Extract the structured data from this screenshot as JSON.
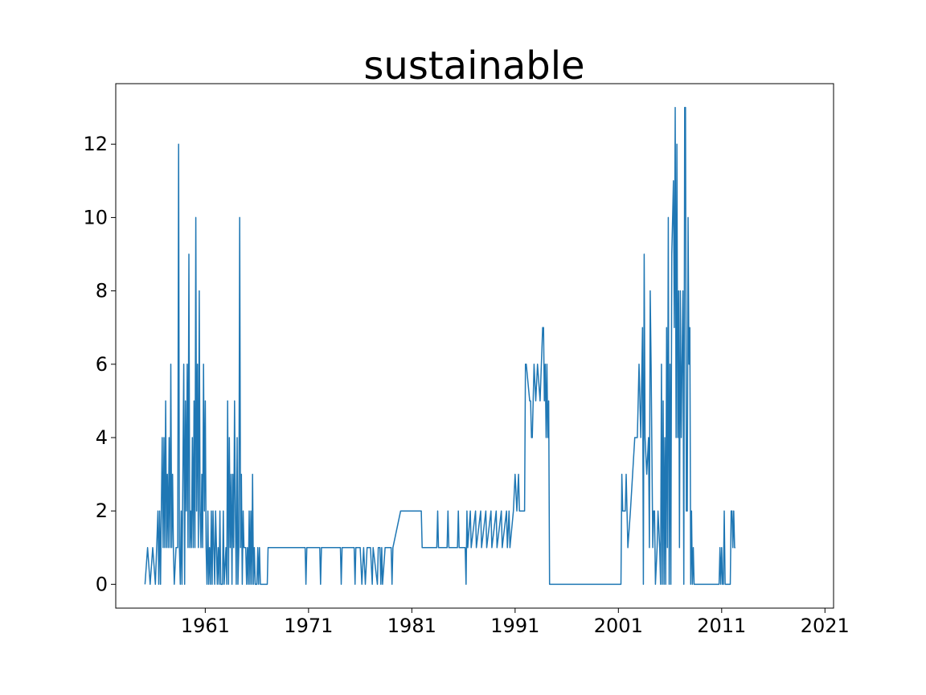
{
  "chart_data": {
    "type": "line",
    "title": "sustainable",
    "xlabel": "",
    "ylabel": "",
    "x_axis_type": "date",
    "xlim": [
      "1952-05-01",
      "2021-11-01"
    ],
    "ylim": [
      -0.65,
      13.65
    ],
    "xticks": [
      "1961",
      "1971",
      "1981",
      "1991",
      "2001",
      "2011",
      "2021"
    ],
    "yticks": [
      "0",
      "2",
      "4",
      "6",
      "8",
      "10",
      "12"
    ],
    "grid": false,
    "legend": "none",
    "series": [
      {
        "color": "#1f77b4",
        "points": [
          [
            "1955-03",
            0
          ],
          [
            "1955-06",
            1
          ],
          [
            "1955-09",
            0
          ],
          [
            "1955-12",
            1
          ],
          [
            "1956-03",
            0
          ],
          [
            "1956-06",
            2
          ],
          [
            "1956-07",
            0
          ],
          [
            "1956-08",
            2
          ],
          [
            "1956-09",
            0
          ],
          [
            "1956-10",
            2
          ],
          [
            "1956-11",
            4
          ],
          [
            "1956-12",
            1
          ],
          [
            "1957-01",
            4
          ],
          [
            "1957-02",
            1
          ],
          [
            "1957-03",
            5
          ],
          [
            "1957-04",
            1
          ],
          [
            "1957-05",
            3
          ],
          [
            "1957-06",
            1
          ],
          [
            "1957-07",
            4
          ],
          [
            "1957-08",
            1
          ],
          [
            "1957-09",
            6
          ],
          [
            "1957-10",
            1
          ],
          [
            "1957-11",
            3
          ],
          [
            "1957-12",
            1
          ],
          [
            "1958-01",
            0
          ],
          [
            "1958-03",
            1
          ],
          [
            "1958-05",
            1
          ],
          [
            "1958-06",
            12
          ],
          [
            "1958-07",
            1
          ],
          [
            "1958-08",
            0
          ],
          [
            "1958-09",
            2
          ],
          [
            "1958-10",
            0
          ],
          [
            "1958-12",
            6
          ],
          [
            "1959-01",
            0
          ],
          [
            "1959-02",
            5
          ],
          [
            "1959-03",
            2
          ],
          [
            "1959-04",
            6
          ],
          [
            "1959-05",
            1
          ],
          [
            "1959-06",
            9
          ],
          [
            "1959-07",
            1
          ],
          [
            "1959-08",
            2
          ],
          [
            "1959-09",
            1
          ],
          [
            "1959-10",
            4
          ],
          [
            "1959-11",
            1
          ],
          [
            "1959-12",
            5
          ],
          [
            "1960-01",
            1
          ],
          [
            "1960-02",
            10
          ],
          [
            "1960-03",
            2
          ],
          [
            "1960-04",
            6
          ],
          [
            "1960-05",
            1
          ],
          [
            "1960-06",
            8
          ],
          [
            "1960-07",
            2
          ],
          [
            "1960-08",
            1
          ],
          [
            "1960-09",
            3
          ],
          [
            "1960-10",
            1
          ],
          [
            "1960-11",
            6
          ],
          [
            "1960-12",
            2
          ],
          [
            "1961-01",
            5
          ],
          [
            "1961-02",
            1
          ],
          [
            "1961-03",
            0
          ],
          [
            "1961-04",
            2
          ],
          [
            "1961-05",
            0
          ],
          [
            "1961-06",
            1
          ],
          [
            "1961-07",
            0
          ],
          [
            "1961-08",
            2
          ],
          [
            "1961-09",
            0
          ],
          [
            "1961-10",
            2
          ],
          [
            "1961-11",
            1
          ],
          [
            "1961-12",
            0
          ],
          [
            "1962-01",
            2
          ],
          [
            "1962-02",
            1
          ],
          [
            "1962-03",
            0
          ],
          [
            "1962-04",
            1
          ],
          [
            "1962-05",
            0
          ],
          [
            "1962-06",
            2
          ],
          [
            "1962-07",
            0
          ],
          [
            "1962-09",
            0
          ],
          [
            "1962-10",
            2
          ],
          [
            "1962-11",
            0
          ],
          [
            "1963-01",
            1
          ],
          [
            "1963-02",
            0
          ],
          [
            "1963-03",
            5
          ],
          [
            "1963-04",
            0
          ],
          [
            "1963-05",
            4
          ],
          [
            "1963-06",
            1
          ],
          [
            "1963-07",
            3
          ],
          [
            "1963-08",
            0
          ],
          [
            "1963-09",
            3
          ],
          [
            "1963-10",
            1
          ],
          [
            "1963-11",
            5
          ],
          [
            "1963-12",
            2
          ],
          [
            "1964-01",
            0
          ],
          [
            "1964-02",
            4
          ],
          [
            "1964-03",
            0
          ],
          [
            "1964-04",
            1
          ],
          [
            "1964-05",
            10
          ],
          [
            "1964-06",
            1
          ],
          [
            "1964-07",
            3
          ],
          [
            "1964-08",
            0
          ],
          [
            "1964-09",
            2
          ],
          [
            "1964-10",
            1
          ],
          [
            "1964-12",
            1
          ],
          [
            "1965-01",
            0
          ],
          [
            "1965-02",
            1
          ],
          [
            "1965-03",
            0
          ],
          [
            "1965-04",
            2
          ],
          [
            "1965-05",
            0
          ],
          [
            "1965-06",
            2
          ],
          [
            "1965-07",
            0
          ],
          [
            "1965-08",
            3
          ],
          [
            "1965-09",
            0
          ],
          [
            "1965-10",
            1
          ],
          [
            "1965-11",
            0
          ],
          [
            "1966-01",
            0
          ],
          [
            "1966-02",
            1
          ],
          [
            "1966-03",
            0
          ],
          [
            "1966-04",
            1
          ],
          [
            "1966-05",
            0
          ],
          [
            "1966-06",
            0
          ],
          [
            "1967-01",
            0
          ],
          [
            "1967-02",
            1
          ],
          [
            "1970-09",
            1
          ],
          [
            "1970-10",
            0
          ],
          [
            "1970-11",
            1
          ],
          [
            "1972-01",
            1
          ],
          [
            "1972-02",
            1
          ],
          [
            "1972-03",
            0
          ],
          [
            "1972-04",
            1
          ],
          [
            "1974-01",
            1
          ],
          [
            "1974-02",
            1
          ],
          [
            "1974-03",
            0
          ],
          [
            "1974-04",
            1
          ],
          [
            "1975-06",
            1
          ],
          [
            "1975-07",
            0
          ],
          [
            "1975-08",
            1
          ],
          [
            "1976-01",
            1
          ],
          [
            "1976-03",
            0
          ],
          [
            "1976-05",
            1
          ],
          [
            "1976-07",
            0
          ],
          [
            "1976-09",
            1
          ],
          [
            "1977-01",
            1
          ],
          [
            "1977-03",
            0
          ],
          [
            "1977-04",
            1
          ],
          [
            "1977-09",
            0
          ],
          [
            "1977-10",
            1
          ],
          [
            "1977-12",
            1
          ],
          [
            "1978-01",
            0
          ],
          [
            "1978-02",
            1
          ],
          [
            "1978-03",
            0
          ],
          [
            "1978-06",
            1
          ],
          [
            "1979-01",
            1
          ],
          [
            "1979-02",
            0
          ],
          [
            "1979-03",
            1
          ],
          [
            "1979-12",
            2
          ],
          [
            "1981-12",
            2
          ],
          [
            "1982-01",
            1
          ],
          [
            "1983-06",
            1
          ],
          [
            "1983-07",
            2
          ],
          [
            "1983-08",
            1
          ],
          [
            "1984-06",
            1
          ],
          [
            "1984-07",
            2
          ],
          [
            "1984-08",
            1
          ],
          [
            "1985-06",
            1
          ],
          [
            "1985-07",
            2
          ],
          [
            "1985-08",
            1
          ],
          [
            "1986-03",
            1
          ],
          [
            "1986-04",
            0
          ],
          [
            "1986-05",
            2
          ],
          [
            "1986-06",
            1
          ],
          [
            "1986-09",
            2
          ],
          [
            "1986-10",
            1
          ],
          [
            "1987-03",
            2
          ],
          [
            "1987-04",
            1
          ],
          [
            "1987-09",
            2
          ],
          [
            "1987-10",
            1
          ],
          [
            "1988-03",
            2
          ],
          [
            "1988-04",
            1
          ],
          [
            "1988-09",
            2
          ],
          [
            "1988-10",
            1
          ],
          [
            "1989-03",
            2
          ],
          [
            "1989-04",
            1
          ],
          [
            "1989-09",
            2
          ],
          [
            "1989-10",
            1
          ],
          [
            "1990-03",
            2
          ],
          [
            "1990-04",
            1
          ],
          [
            "1990-06",
            2
          ],
          [
            "1990-07",
            1
          ],
          [
            "1990-11",
            2
          ],
          [
            "1991-01",
            3
          ],
          [
            "1991-03",
            2
          ],
          [
            "1991-05",
            3
          ],
          [
            "1991-06",
            2
          ],
          [
            "1991-12",
            2
          ],
          [
            "1992-01",
            6
          ],
          [
            "1992-02",
            6
          ],
          [
            "1992-06",
            5
          ],
          [
            "1992-07",
            5
          ],
          [
            "1992-08",
            4
          ],
          [
            "1992-09",
            4
          ],
          [
            "1992-11",
            6
          ],
          [
            "1993-01",
            5
          ],
          [
            "1993-03",
            6
          ],
          [
            "1993-06",
            5
          ],
          [
            "1993-09",
            7
          ],
          [
            "1993-10",
            7
          ],
          [
            "1993-11",
            5
          ],
          [
            "1993-12",
            6
          ],
          [
            "1994-01",
            4
          ],
          [
            "1994-02",
            6
          ],
          [
            "1994-03",
            4
          ],
          [
            "1994-04",
            5
          ],
          [
            "1994-05",
            0
          ],
          [
            "2001-04",
            0
          ],
          [
            "2001-05",
            3
          ],
          [
            "2001-06",
            2
          ],
          [
            "2001-09",
            2
          ],
          [
            "2001-10",
            3
          ],
          [
            "2001-12",
            1
          ],
          [
            "2002-03",
            2
          ],
          [
            "2002-08",
            4
          ],
          [
            "2002-11",
            4
          ],
          [
            "2003-01",
            6
          ],
          [
            "2003-03",
            4
          ],
          [
            "2003-05",
            7
          ],
          [
            "2003-06",
            0
          ],
          [
            "2003-07",
            9
          ],
          [
            "2003-08",
            4
          ],
          [
            "2003-10",
            3
          ],
          [
            "2003-12",
            4
          ],
          [
            "2004-01",
            1
          ],
          [
            "2004-02",
            8
          ],
          [
            "2004-03",
            6
          ],
          [
            "2004-05",
            1
          ],
          [
            "2004-06",
            2
          ],
          [
            "2004-07",
            2
          ],
          [
            "2004-08",
            0
          ],
          [
            "2004-10",
            1
          ],
          [
            "2004-11",
            2
          ],
          [
            "2005-01",
            1
          ],
          [
            "2005-02",
            0
          ],
          [
            "2005-03",
            6
          ],
          [
            "2005-04",
            0
          ],
          [
            "2005-05",
            5
          ],
          [
            "2005-06",
            0
          ],
          [
            "2005-07",
            4
          ],
          [
            "2005-08",
            0
          ],
          [
            "2005-09",
            7
          ],
          [
            "2005-10",
            1
          ],
          [
            "2005-11",
            10
          ],
          [
            "2005-12",
            0
          ],
          [
            "2006-01",
            6
          ],
          [
            "2006-02",
            0
          ],
          [
            "2006-03",
            9
          ],
          [
            "2006-04",
            10
          ],
          [
            "2006-05",
            11
          ],
          [
            "2006-06",
            7
          ],
          [
            "2006-07",
            13
          ],
          [
            "2006-08",
            4
          ],
          [
            "2006-09",
            12
          ],
          [
            "2006-10",
            4
          ],
          [
            "2006-11",
            8
          ],
          [
            "2006-12",
            1
          ],
          [
            "2007-01",
            8
          ],
          [
            "2007-02",
            4
          ],
          [
            "2007-03",
            6
          ],
          [
            "2007-04",
            8
          ],
          [
            "2007-05",
            0
          ],
          [
            "2007-06",
            13
          ],
          [
            "2007-07",
            13
          ],
          [
            "2007-08",
            2
          ],
          [
            "2007-09",
            2
          ],
          [
            "2007-10",
            10
          ],
          [
            "2007-11",
            6
          ],
          [
            "2007-12",
            7
          ],
          [
            "2008-01",
            0
          ],
          [
            "2008-02",
            2
          ],
          [
            "2008-03",
            0
          ],
          [
            "2008-04",
            1
          ],
          [
            "2008-05",
            0
          ],
          [
            "2010-10",
            0
          ],
          [
            "2010-11",
            1
          ],
          [
            "2010-12",
            0
          ],
          [
            "2011-01",
            1
          ],
          [
            "2011-02",
            0
          ],
          [
            "2011-03",
            0
          ],
          [
            "2011-04",
            2
          ],
          [
            "2011-05",
            0
          ],
          [
            "2011-11",
            0
          ],
          [
            "2011-12",
            2
          ],
          [
            "2012-01",
            2
          ],
          [
            "2012-02",
            1
          ],
          [
            "2012-03",
            2
          ],
          [
            "2012-04",
            1
          ],
          [
            "2012-05",
            1
          ]
        ]
      }
    ]
  }
}
